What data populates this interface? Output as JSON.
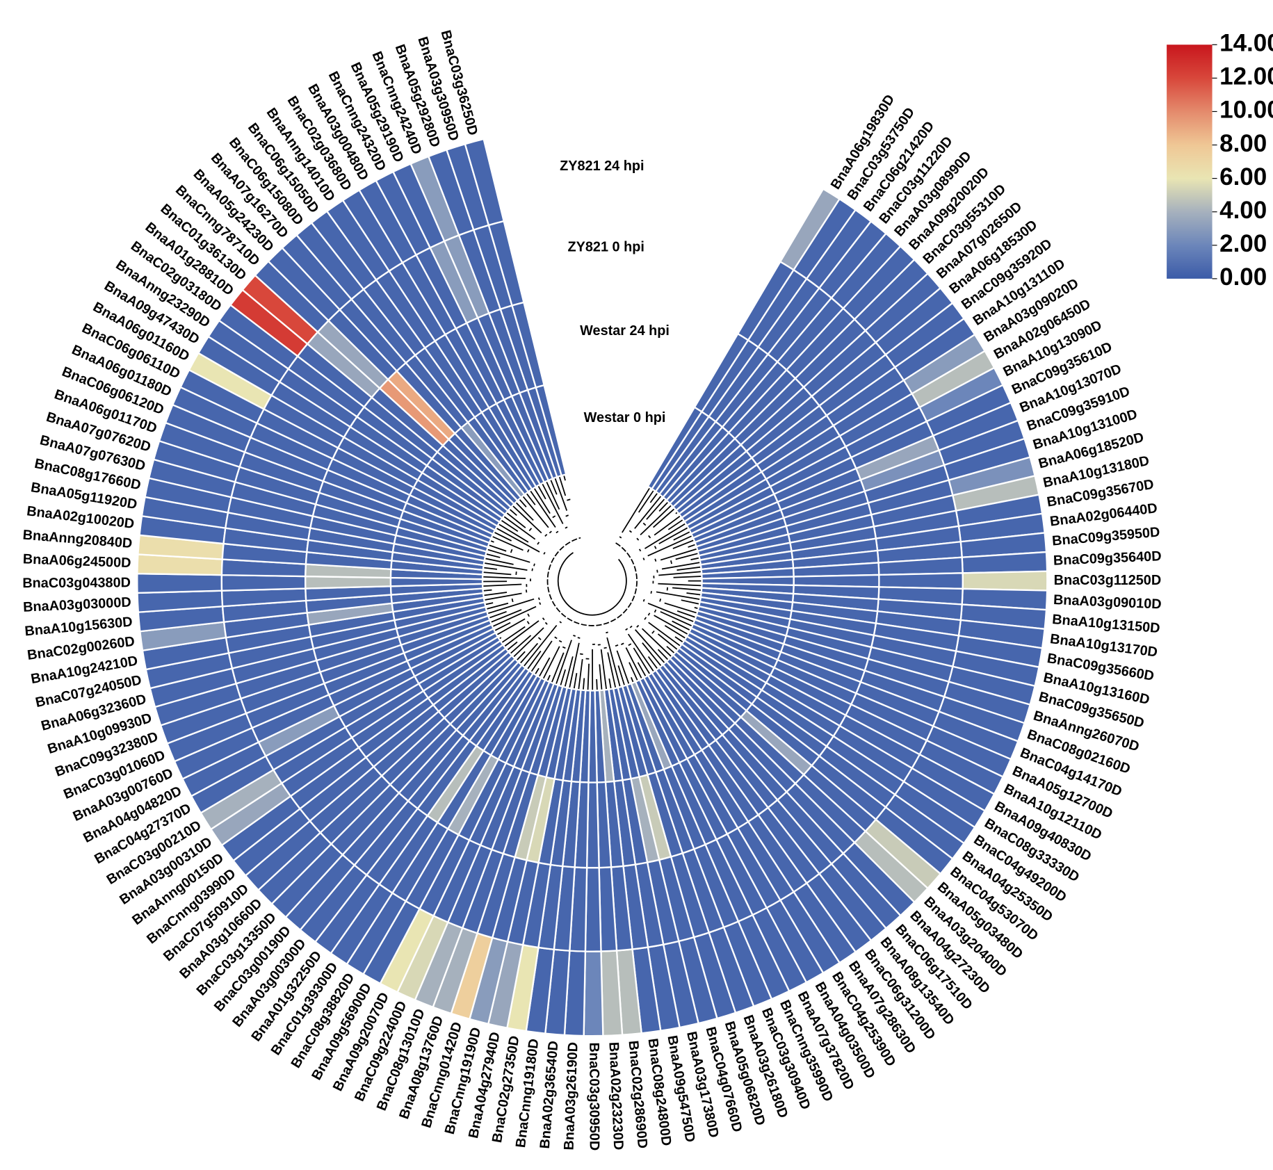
{
  "chart_data": {
    "type": "circular_heatmap",
    "categories": [
      "BnaA06g19830D",
      "BnaC03g53750D",
      "BnaC06g21420D",
      "BnaC03g11220D",
      "BnaA03g08990D",
      "BnaA09g20020D",
      "BnaC03g55310D",
      "BnaA07g02650D",
      "BnaA06g18530D",
      "BnaC09g35920D",
      "BnaA10g13110D",
      "BnaA03g09020D",
      "BnaA02g06450D",
      "BnaA10g13090D",
      "BnaC09g35610D",
      "BnaA10g13070D",
      "BnaC09g35910D",
      "BnaA10g13100D",
      "BnaA06g18520D",
      "BnaA10g13180D",
      "BnaC09g35670D",
      "BnaA02g06440D",
      "BnaC09g35950D",
      "BnaC09g35640D",
      "BnaC03g11250D",
      "BnaA03g09010D",
      "BnaA10g13150D",
      "BnaA10g13170D",
      "BnaC09g35660D",
      "BnaA10g13160D",
      "BnaC09g35650D",
      "BnaAnng26070D",
      "BnaC08g02160D",
      "BnaC04g14170D",
      "BnaA05g12700D",
      "BnaA10g12110D",
      "BnaA09g40830D",
      "BnaC08g33330D",
      "BnaC04g49200D",
      "BnaA04g25350D",
      "BnaC04g53070D",
      "BnaA05g03480D",
      "BnaA03g20400D",
      "BnaA04g27230D",
      "BnaC06g17510D",
      "BnaA08g13540D",
      "BnaC06g31200D",
      "BnaA07g28630D",
      "BnaC04g25390D",
      "BnaA04g03500D",
      "BnaA07g37820D",
      "BnaCnng35990D",
      "BnaC03g30940D",
      "BnaA03g26180D",
      "BnaA05g06820D",
      "BnaC04g07660D",
      "BnaA03g17380D",
      "BnaA09g54750D",
      "BnaC08g24800D",
      "BnaC02g28690D",
      "BnaA02g23230D",
      "BnaC03g30950D",
      "BnaA03g26190D",
      "BnaA02g36540D",
      "BnaCnng19180D",
      "BnaC02g27350D",
      "BnaA04g27940D",
      "BnaCnng19190D",
      "BnaCnng01420D",
      "BnaA08g13760D",
      "BnaC08g13010D",
      "BnaC09g22400D",
      "BnaA09g20070D",
      "BnaA09g56900D",
      "BnaC08g38820D",
      "BnaC01g39300D",
      "BnaA01g32250D",
      "BnaA03g00300D",
      "BnaC03g00190D",
      "BnaC03g13350D",
      "BnaA03g10660D",
      "BnaC07g50910D",
      "BnaCnng03990D",
      "BnaAnng00150D",
      "BnaA03g00310D",
      "BnaC03g00210D",
      "BnaC04g27370D",
      "BnaA04g04820D",
      "BnaA03g00760D",
      "BnaC03g01060D",
      "BnaC09g32380D",
      "BnaA10g09930D",
      "BnaA06g32360D",
      "BnaC07g24050D",
      "BnaA10g24210D",
      "BnaC02g00260D",
      "BnaA10g15630D",
      "BnaA03g03000D",
      "BnaC03g04380D",
      "BnaA06g24500D",
      "BnaAnng20840D",
      "BnaA02g10020D",
      "BnaA05g11920D",
      "BnaC08g17660D",
      "BnaA07g07630D",
      "BnaA07g07620D",
      "BnaA06g01170D",
      "BnaC06g06120D",
      "BnaA06g01180D",
      "BnaC06g06110D",
      "BnaA06g01160D",
      "BnaA09g47430D",
      "BnaAnng23290D",
      "BnaC02g03180D",
      "BnaA01g28810D",
      "BnaC01g36130D",
      "BnaCnng78710D",
      "BnaA05g24230D",
      "BnaA07g16270D",
      "BnaC06g15080D",
      "BnaC06g15050D",
      "BnaAnng14010D",
      "BnaC02g03680D",
      "BnaA03g00480D",
      "BnaCnng24320D",
      "BnaA05g29190D",
      "BnaCnng24240D",
      "BnaA05g29280D",
      "BnaA03g30950D",
      "BnaC03g36250D"
    ],
    "series": [
      {
        "name": "ZY821 24 hpi",
        "values": [
          3.5,
          0.5,
          0.5,
          0.5,
          0.5,
          0.5,
          0.5,
          0.5,
          0.5,
          0.5,
          0.5,
          3,
          4.5,
          2,
          0.5,
          0.5,
          0.5,
          0.5,
          2.5,
          4.5,
          0.5,
          0.5,
          0.5,
          0.5,
          5.5,
          0.5,
          0.5,
          0.5,
          0.5,
          0.5,
          0.5,
          0.5,
          0.5,
          0.5,
          0.5,
          0.5,
          0.5,
          0.5,
          0.5,
          0.5,
          0.5,
          5,
          4.5,
          0.5,
          0.5,
          0.5,
          0.5,
          0.5,
          0.5,
          0.5,
          0.5,
          0.5,
          0.5,
          0.5,
          0.5,
          0.5,
          0.5,
          0.5,
          0.5,
          4.5,
          4.5,
          2,
          0.5,
          0.5,
          0.5,
          6,
          3.5,
          3,
          7.5,
          4,
          4,
          5.5,
          6,
          0.5,
          0.5,
          0.5,
          0.5,
          0.5,
          0.5,
          0.5,
          0.5,
          0.5,
          0.5,
          0.5,
          3.5,
          4,
          0.5,
          0.5,
          0.5,
          0.5,
          0.5,
          0.5,
          0.5,
          0.5,
          0.5,
          3,
          0.5,
          0.5,
          0.5,
          6.5,
          6.5,
          0.5,
          0.5,
          0.5,
          0.5,
          0.5,
          0.5,
          0.5,
          0.5,
          0.5,
          6,
          0.5,
          0.5,
          0.5,
          12.5,
          12,
          0.5,
          0.5,
          0.5,
          0.5,
          0.5,
          0.5,
          0.5,
          0.5,
          0.5,
          0.5,
          3,
          0.5,
          0.5,
          0.5
        ]
      },
      {
        "name": "ZY821 0 hpi",
        "values": [
          0.5,
          0.5,
          0.5,
          0.5,
          0.5,
          0.5,
          0.5,
          0.5,
          0.5,
          0.5,
          0.5,
          0.5,
          0.5,
          0.5,
          0.5,
          3.5,
          2.5,
          0.5,
          0.5,
          0.5,
          0.5,
          0.5,
          0.5,
          0.5,
          0.5,
          0.5,
          0.5,
          0.5,
          0.5,
          0.5,
          0.5,
          0.5,
          0.5,
          0.5,
          0.5,
          0.5,
          0.5,
          0.5,
          0.5,
          0.5,
          0.5,
          0.5,
          0.5,
          0.5,
          0.5,
          0.5,
          0.5,
          0.5,
          0.5,
          0.5,
          0.5,
          0.5,
          0.5,
          0.5,
          0.5,
          0.5,
          0.5,
          0.5,
          0.5,
          0.5,
          0.5,
          0.5,
          0.5,
          0.5,
          0.5,
          0.5,
          0.5,
          0.5,
          0.5,
          0.5,
          0.5,
          0.5,
          0.5,
          0.5,
          0.5,
          0.5,
          0.5,
          0.5,
          0.5,
          0.5,
          0.5,
          0.5,
          0.5,
          0.5,
          0.5,
          0.5,
          0.5,
          3,
          0.5,
          0.5,
          0.5,
          0.5,
          0.5,
          0.5,
          0.5,
          0.5,
          0.5,
          0.5,
          0.5,
          0.5,
          0.5,
          0.5,
          0.5,
          0.5,
          0.5,
          0.5,
          0.5,
          0.5,
          0.5,
          0.5,
          0.5,
          0.5,
          0.5,
          0.5,
          0.5,
          3.5,
          3.5,
          0.5,
          0.5,
          0.5,
          0.5,
          0.5,
          0.5,
          0.5,
          0.5,
          3,
          3,
          0.5,
          0.5,
          0.5
        ]
      },
      {
        "name": "Westar 24 hpi",
        "values": [
          0.5,
          0.5,
          0.5,
          0.5,
          0.5,
          0.5,
          0.5,
          0.5,
          0.5,
          0.5,
          0.5,
          0.5,
          0.5,
          0.5,
          0.5,
          0.5,
          0.5,
          0.5,
          0.5,
          0.5,
          0.5,
          0.5,
          0.5,
          0.5,
          0.5,
          0.5,
          0.5,
          0.5,
          0.5,
          0.5,
          0.5,
          0.5,
          0.5,
          0.5,
          0.5,
          0.5,
          0.5,
          0.5,
          0.5,
          0.5,
          0.5,
          3.5,
          0.5,
          0.5,
          0.5,
          0.5,
          0.5,
          0.5,
          0.5,
          0.5,
          0.5,
          0.5,
          0.5,
          0.5,
          0.5,
          5,
          4,
          0.5,
          0.5,
          0.5,
          0.5,
          0.5,
          0.5,
          0.5,
          0.5,
          0.5,
          5.5,
          5,
          0.5,
          0.5,
          0.5,
          0.5,
          0.5,
          4,
          0.5,
          4.5,
          0.5,
          0.5,
          0.5,
          0.5,
          0.5,
          0.5,
          0.5,
          0.5,
          0.5,
          0.5,
          0.5,
          0.5,
          0.5,
          0.5,
          0.5,
          0.5,
          0.5,
          0.5,
          0.5,
          3.5,
          0.5,
          0.5,
          4.5,
          4.5,
          0.5,
          0.5,
          0.5,
          0.5,
          0.5,
          0.5,
          0.5,
          0.5,
          0.5,
          0.5,
          0.5,
          0.5,
          0.5,
          0.5,
          0.5,
          0.5,
          9.5,
          9,
          0.5,
          0.5,
          0.5,
          0.5,
          0.5,
          0.5,
          0.5,
          0.5,
          0.5,
          0.5,
          0.5,
          0.5
        ]
      },
      {
        "name": "Westar 0 hpi",
        "values": [
          0.5,
          0.5,
          0.5,
          0.5,
          0.5,
          0.5,
          0.5,
          0.5,
          0.5,
          0.5,
          0.5,
          0.5,
          0.5,
          0.5,
          0.5,
          0.5,
          0.5,
          0.5,
          0.5,
          0.5,
          0.5,
          0.5,
          0.5,
          0.5,
          0.5,
          0.5,
          0.5,
          0.5,
          0.5,
          0.5,
          0.5,
          0.5,
          0.5,
          0.5,
          0.5,
          0.5,
          0.5,
          0.5,
          0.5,
          0.5,
          0.5,
          0.5,
          0.5,
          0.5,
          0.5,
          0.5,
          0.5,
          0.5,
          0.5,
          0.5,
          0.5,
          0.5,
          3.5,
          0.5,
          0.5,
          0.5,
          0.5,
          0.5,
          0.5,
          4,
          0.5,
          0.5,
          0.5,
          0.5,
          0.5,
          0.5,
          0.5,
          0.5,
          0.5,
          0.5,
          0.5,
          0.5,
          0.5,
          0.5,
          0.5,
          0.5,
          0.5,
          0.5,
          0.5,
          0.5,
          0.5,
          0.5,
          0.5,
          0.5,
          0.5,
          0.5,
          0.5,
          0.5,
          0.5,
          0.5,
          0.5,
          0.5,
          0.5,
          0.5,
          0.5,
          0.5,
          0.5,
          0.5,
          0.5,
          0.5,
          0.5,
          0.5,
          0.5,
          0.5,
          0.5,
          0.5,
          0.5,
          0.5,
          0.5,
          0.5,
          0.5,
          0.5,
          0.5,
          0.5,
          0.5,
          0.5,
          0.5,
          0.5,
          0.5,
          3,
          0.5,
          0.5,
          0.5,
          0.5,
          0.5,
          0.5,
          0.5,
          0.5,
          0.5,
          0.5
        ]
      }
    ],
    "colorbar": {
      "lim": [
        0,
        14
      ],
      "ticks": [
        {
          "value": 0,
          "label": "0.00"
        },
        {
          "value": 2,
          "label": "2.00"
        },
        {
          "value": 4,
          "label": "4.00"
        },
        {
          "value": 6,
          "label": "6.00"
        },
        {
          "value": 8,
          "label": "8.00"
        },
        {
          "value": 10,
          "label": "10.00"
        },
        {
          "value": 12,
          "label": "12.00"
        },
        {
          "value": 14,
          "label": "14.00"
        }
      ],
      "colors": [
        "#3b5ba8",
        "#6c86ba",
        "#a6b1bd",
        "#e9e5b3",
        "#efc795",
        "#e48a6c",
        "#d8473b",
        "#c8161d"
      ]
    }
  }
}
